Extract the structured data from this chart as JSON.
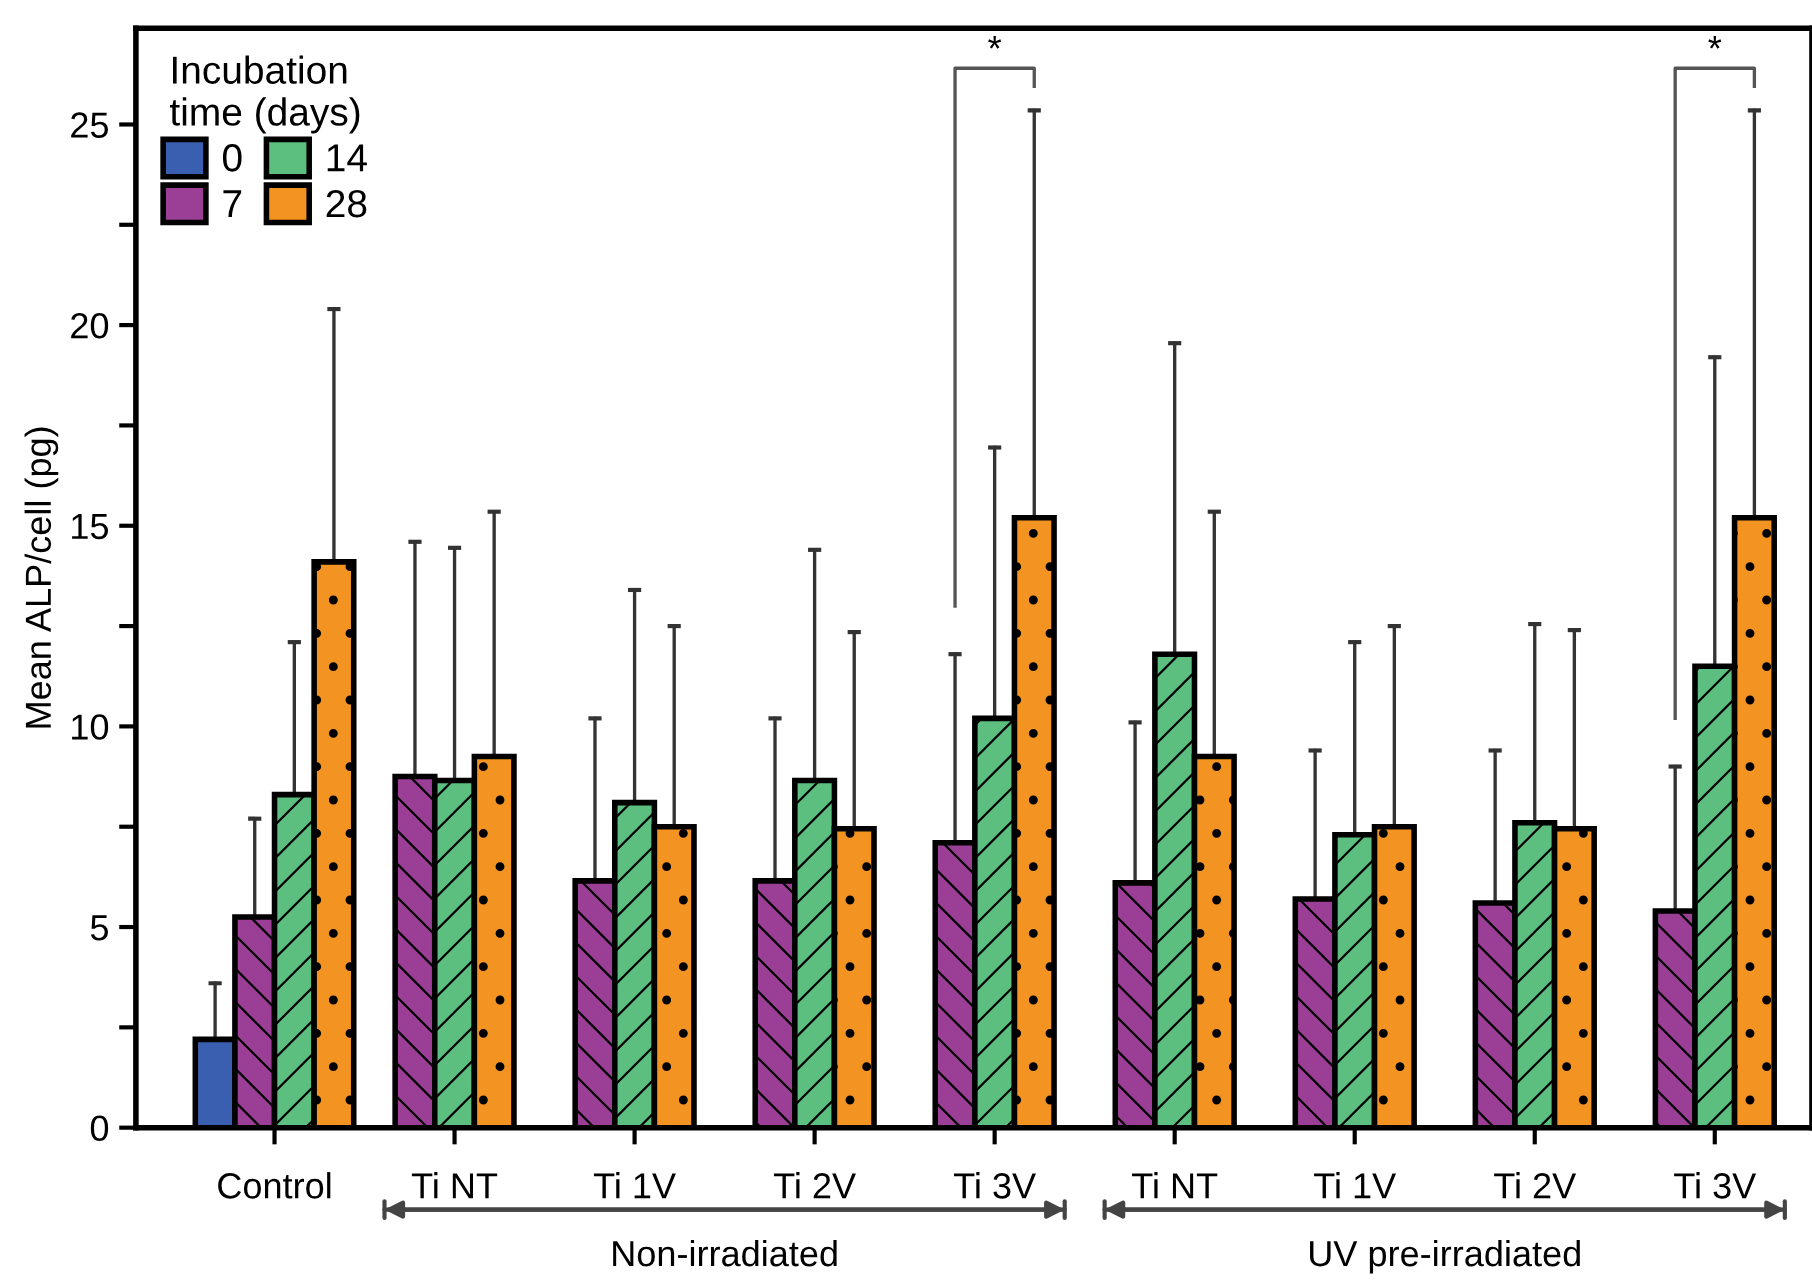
{
  "chart_data": {
    "type": "bar",
    "ylabel": "Mean ALP/cell (pg)",
    "legend_title": "Incubation\ntime (days)",
    "legend": "top left",
    "grid": false,
    "categories": [
      "Control",
      "Ti NT",
      "Ti 1V",
      "Ti 2V",
      "Ti 3V",
      "Ti NT",
      "Ti 1V",
      "Ti 2V",
      "Ti 3V"
    ],
    "ylim": [
      0,
      27.4
    ],
    "yticks": [
      0,
      {
        "value": 2.5,
        "label": null
      },
      5,
      {
        "value": 7.5,
        "label": null
      },
      10,
      {
        "value": 12.5,
        "label": null
      },
      15,
      {
        "value": 17.5,
        "label": null
      },
      20,
      {
        "value": 22.5,
        "label": null
      },
      25
    ],
    "series": [
      {
        "name": "0",
        "color": "#3a5fb0",
        "values": [
          2.2,
          null,
          null,
          null,
          null,
          null,
          null,
          null,
          null
        ],
        "errors": [
          [
            2.2,
            3.6
          ],
          null,
          null,
          null,
          null,
          null,
          null,
          null,
          null
        ]
      },
      {
        "name": "7",
        "color": "#9b3f96",
        "values": [
          5.25,
          8.75,
          6.15,
          6.15,
          7.1,
          6.1,
          5.7,
          5.6,
          5.4
        ],
        "errors": [
          [
            5.25,
            7.7
          ],
          [
            8.75,
            14.6
          ],
          [
            6.15,
            10.2
          ],
          [
            6.15,
            10.2
          ],
          [
            7.1,
            11.8
          ],
          [
            6.1,
            10.1
          ],
          [
            5.7,
            9.4
          ],
          [
            5.6,
            9.4
          ],
          [
            5.4,
            9.0
          ]
        ]
      },
      {
        "name": "14",
        "color": "#5cbf80",
        "values": [
          8.3,
          8.65,
          8.1,
          8.65,
          10.2,
          11.8,
          7.3,
          7.6,
          11.5
        ],
        "errors": [
          [
            8.3,
            12.1
          ],
          [
            8.65,
            14.45
          ],
          [
            8.1,
            13.4
          ],
          [
            8.65,
            14.4
          ],
          [
            10.2,
            16.95
          ],
          [
            11.8,
            19.55
          ],
          [
            7.3,
            12.1
          ],
          [
            7.6,
            12.55
          ],
          [
            11.5,
            19.2
          ]
        ]
      },
      {
        "name": "28",
        "color": "#f39422",
        "values": [
          14.1,
          9.25,
          7.5,
          7.45,
          15.2,
          9.25,
          7.5,
          7.45,
          15.2
        ],
        "errors": [
          [
            14.1,
            20.4
          ],
          [
            9.25,
            15.35
          ],
          [
            7.5,
            12.5
          ],
          [
            7.45,
            12.35
          ],
          [
            15.2,
            25.35
          ],
          [
            9.25,
            15.35
          ],
          [
            7.5,
            12.5
          ],
          [
            7.45,
            12.4
          ],
          [
            15.2,
            25.35
          ]
        ]
      }
    ],
    "annotations": [
      "*",
      "*",
      "Non-irradiated",
      "UV pre-irradiated"
    ]
  }
}
